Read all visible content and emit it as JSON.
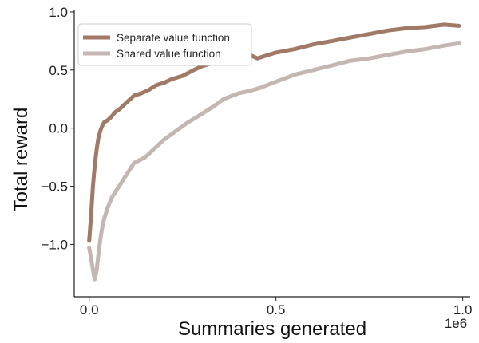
{
  "chart_data": {
    "type": "line",
    "xlabel": "Summaries generated",
    "ylabel": "Total reward",
    "x_offset_label": "1e6",
    "xlim": [
      -0.04,
      1.02
    ],
    "ylim": [
      -1.45,
      1.02
    ],
    "xticks": [
      0.0,
      0.5,
      1.0
    ],
    "xtick_labels": [
      "0.0",
      "0.5",
      "1.0"
    ],
    "yticks": [
      1.0,
      0.5,
      0.0,
      -0.5,
      -1.0
    ],
    "ytick_labels": [
      "1.0",
      "0.5",
      "0.0",
      "−0.5",
      "−1.0"
    ],
    "grid": false,
    "legend_position": "top-left",
    "series": [
      {
        "name": "Separate value function",
        "color": "#a07a66",
        "x": [
          0.0,
          0.005,
          0.01,
          0.015,
          0.02,
          0.025,
          0.03,
          0.035,
          0.04,
          0.05,
          0.06,
          0.07,
          0.08,
          0.1,
          0.12,
          0.14,
          0.16,
          0.18,
          0.2,
          0.22,
          0.25,
          0.28,
          0.3,
          0.33,
          0.36,
          0.4,
          0.43,
          0.45,
          0.48,
          0.5,
          0.55,
          0.6,
          0.65,
          0.7,
          0.75,
          0.8,
          0.85,
          0.9,
          0.95,
          0.99
        ],
        "y": [
          -0.97,
          -0.75,
          -0.5,
          -0.32,
          -0.18,
          -0.08,
          -0.02,
          0.02,
          0.05,
          0.07,
          0.1,
          0.14,
          0.16,
          0.22,
          0.28,
          0.3,
          0.33,
          0.37,
          0.39,
          0.42,
          0.45,
          0.5,
          0.53,
          0.56,
          0.58,
          0.6,
          0.63,
          0.6,
          0.63,
          0.65,
          0.68,
          0.72,
          0.75,
          0.78,
          0.81,
          0.84,
          0.86,
          0.87,
          0.89,
          0.88
        ]
      },
      {
        "name": "Shared value function",
        "color": "#c4b7b1",
        "x": [
          0.0,
          0.005,
          0.01,
          0.015,
          0.02,
          0.025,
          0.03,
          0.035,
          0.04,
          0.05,
          0.06,
          0.08,
          0.1,
          0.12,
          0.15,
          0.18,
          0.2,
          0.23,
          0.26,
          0.3,
          0.33,
          0.36,
          0.4,
          0.43,
          0.46,
          0.5,
          0.55,
          0.6,
          0.65,
          0.7,
          0.75,
          0.8,
          0.85,
          0.9,
          0.95,
          0.99
        ],
        "y": [
          -1.03,
          -1.12,
          -1.22,
          -1.3,
          -1.22,
          -1.08,
          -0.95,
          -0.85,
          -0.78,
          -0.68,
          -0.6,
          -0.5,
          -0.4,
          -0.3,
          -0.25,
          -0.16,
          -0.1,
          -0.03,
          0.04,
          0.12,
          0.18,
          0.25,
          0.3,
          0.32,
          0.35,
          0.4,
          0.46,
          0.5,
          0.54,
          0.58,
          0.6,
          0.63,
          0.66,
          0.68,
          0.71,
          0.73
        ]
      }
    ]
  }
}
